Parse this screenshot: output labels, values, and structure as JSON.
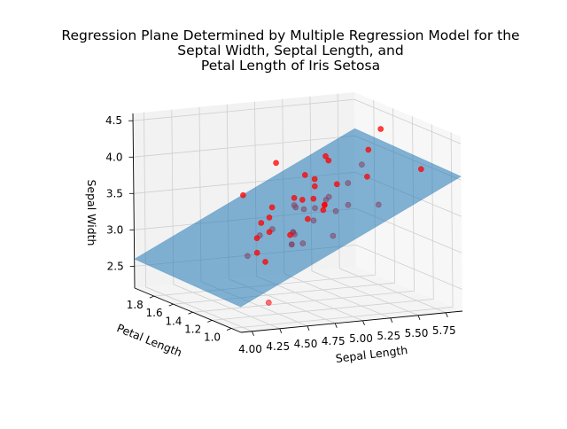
{
  "chart_data": {
    "type": "scatter",
    "subtype": "3d-scatter-with-regression-plane",
    "title_lines": [
      "Regression Plane Determined by Multiple Regression Model for the",
      "Septal Width, Septal Length, and",
      "Petal Length of Iris Setosa"
    ],
    "xlabel": "Sepal Length",
    "ylabel": "Petal Length",
    "zlabel": "Sepal Width",
    "x_ticks": [
      "4.00",
      "4.25",
      "4.50",
      "4.75",
      "5.00",
      "5.25",
      "5.50",
      "5.75"
    ],
    "y_ticks": [
      "1.0",
      "1.2",
      "1.4",
      "1.6",
      "1.8"
    ],
    "z_ticks": [
      "2.5",
      "3.0",
      "3.5",
      "4.0",
      "4.5"
    ],
    "xlim": [
      3.9,
      5.9
    ],
    "ylim": [
      0.9,
      2.0
    ],
    "zlim": [
      2.2,
      4.6
    ],
    "grid": true,
    "colors": {
      "points": "#ff0000",
      "plane": "#1f77b4",
      "pane": "#f2f2f2",
      "grid": "#cfcfcf"
    },
    "plane": {
      "corners": [
        {
          "x": 3.9,
          "y": 0.9,
          "z": 2.55
        },
        {
          "x": 3.9,
          "y": 2.0,
          "z": 2.6
        },
        {
          "x": 5.9,
          "y": 2.0,
          "z": 4.1
        },
        {
          "x": 5.9,
          "y": 0.9,
          "z": 4.05
        }
      ]
    },
    "points": [
      {
        "x": 5.1,
        "y": 1.4,
        "z": 3.5
      },
      {
        "x": 4.9,
        "y": 1.4,
        "z": 3.0
      },
      {
        "x": 4.7,
        "y": 1.3,
        "z": 3.2
      },
      {
        "x": 4.6,
        "y": 1.5,
        "z": 3.1
      },
      {
        "x": 5.0,
        "y": 1.4,
        "z": 3.6
      },
      {
        "x": 5.4,
        "y": 1.7,
        "z": 3.9
      },
      {
        "x": 4.6,
        "y": 1.4,
        "z": 3.4
      },
      {
        "x": 5.0,
        "y": 1.5,
        "z": 3.4
      },
      {
        "x": 4.4,
        "y": 1.4,
        "z": 2.9
      },
      {
        "x": 4.9,
        "y": 1.5,
        "z": 3.1
      },
      {
        "x": 5.4,
        "y": 1.5,
        "z": 3.7
      },
      {
        "x": 4.8,
        "y": 1.6,
        "z": 3.4
      },
      {
        "x": 4.8,
        "y": 1.4,
        "z": 3.0
      },
      {
        "x": 4.3,
        "y": 1.1,
        "z": 3.0
      },
      {
        "x": 5.8,
        "y": 1.2,
        "z": 4.0
      },
      {
        "x": 5.7,
        "y": 1.5,
        "z": 4.4
      },
      {
        "x": 5.4,
        "y": 1.3,
        "z": 3.9
      },
      {
        "x": 5.1,
        "y": 1.4,
        "z": 3.5
      },
      {
        "x": 5.7,
        "y": 1.7,
        "z": 3.8
      },
      {
        "x": 5.1,
        "y": 1.5,
        "z": 3.8
      },
      {
        "x": 5.4,
        "y": 1.7,
        "z": 3.4
      },
      {
        "x": 5.1,
        "y": 1.5,
        "z": 3.7
      },
      {
        "x": 4.6,
        "y": 1.0,
        "z": 3.6
      },
      {
        "x": 5.1,
        "y": 1.7,
        "z": 3.3
      },
      {
        "x": 4.8,
        "y": 1.9,
        "z": 3.4
      },
      {
        "x": 5.0,
        "y": 1.6,
        "z": 3.0
      },
      {
        "x": 5.0,
        "y": 1.6,
        "z": 3.4
      },
      {
        "x": 5.2,
        "y": 1.5,
        "z": 3.5
      },
      {
        "x": 5.2,
        "y": 1.4,
        "z": 3.4
      },
      {
        "x": 4.7,
        "y": 1.6,
        "z": 3.2
      },
      {
        "x": 4.8,
        "y": 1.6,
        "z": 3.1
      },
      {
        "x": 5.4,
        "y": 1.5,
        "z": 3.4
      },
      {
        "x": 5.2,
        "y": 1.5,
        "z": 4.1
      },
      {
        "x": 5.5,
        "y": 1.4,
        "z": 4.2
      },
      {
        "x": 4.9,
        "y": 1.5,
        "z": 3.1
      },
      {
        "x": 5.0,
        "y": 1.2,
        "z": 3.2
      },
      {
        "x": 5.5,
        "y": 1.3,
        "z": 3.5
      },
      {
        "x": 4.9,
        "y": 1.4,
        "z": 3.6
      },
      {
        "x": 4.4,
        "y": 1.3,
        "z": 3.0
      },
      {
        "x": 5.1,
        "y": 1.5,
        "z": 3.4
      },
      {
        "x": 5.0,
        "y": 1.3,
        "z": 3.5
      },
      {
        "x": 4.5,
        "y": 1.3,
        "z": 2.3
      },
      {
        "x": 4.4,
        "y": 1.3,
        "z": 3.2
      },
      {
        "x": 5.0,
        "y": 1.6,
        "z": 3.5
      },
      {
        "x": 5.1,
        "y": 1.9,
        "z": 3.8
      },
      {
        "x": 4.8,
        "y": 1.4,
        "z": 3.0
      },
      {
        "x": 5.1,
        "y": 1.6,
        "z": 3.8
      },
      {
        "x": 4.6,
        "y": 1.4,
        "z": 3.2
      },
      {
        "x": 5.3,
        "y": 1.5,
        "z": 3.7
      },
      {
        "x": 5.0,
        "y": 1.4,
        "z": 3.3
      }
    ]
  }
}
